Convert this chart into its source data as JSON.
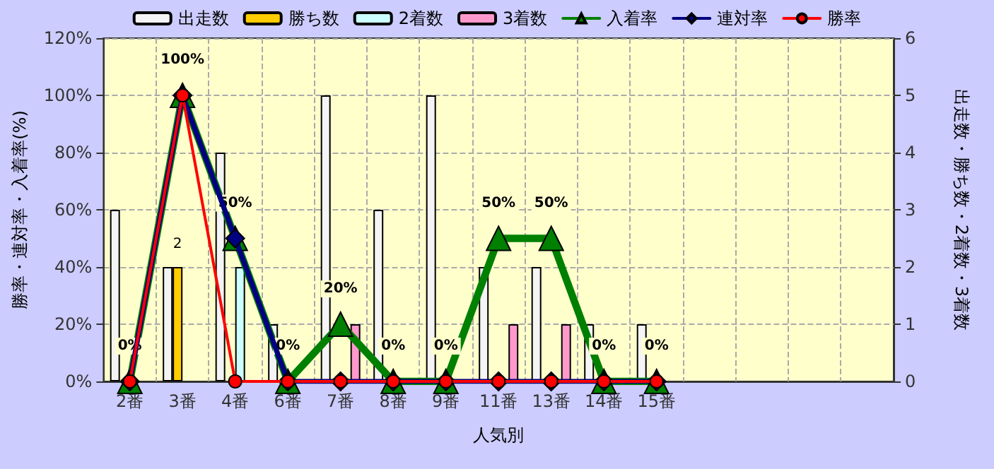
{
  "chart_data": {
    "type": "bar",
    "xlabel": "人気別",
    "ylabel": "勝率・連対率・入着率(%)",
    "y2label": "出走数・勝ち数・2着数・3着数",
    "categories": [
      "2番",
      "3番",
      "4番",
      "6番",
      "7番",
      "8番",
      "9番",
      "11番",
      "13番",
      "14番",
      "15番",
      null,
      null,
      null,
      null
    ],
    "series": [
      {
        "name": "出走数",
        "axis": "y2",
        "color": "#f4f4f4",
        "values": [
          3,
          2,
          4,
          1,
          5,
          3,
          5,
          2,
          2,
          1,
          1,
          null,
          null,
          null,
          null
        ]
      },
      {
        "name": "勝ち数",
        "axis": "y2",
        "color": "#ffcc00",
        "values": [
          0,
          2,
          0,
          0,
          0,
          0,
          0,
          0,
          0,
          0,
          0,
          null,
          null,
          null,
          null
        ],
        "value_labels": [
          null,
          "2",
          null,
          null,
          null,
          null,
          null,
          null,
          null,
          null,
          null,
          null,
          null,
          null,
          null
        ]
      },
      {
        "name": "2着数",
        "axis": "y2",
        "color": "#ccffff",
        "values": [
          0,
          0,
          2,
          0,
          0,
          0,
          0,
          0,
          0,
          0,
          0,
          null,
          null,
          null,
          null
        ]
      },
      {
        "name": "3着数",
        "axis": "y2",
        "color": "#ff99cc",
        "values": [
          0,
          0,
          0,
          0,
          1,
          0,
          0,
          1,
          1,
          0,
          0,
          null,
          null,
          null,
          null
        ]
      },
      {
        "name": "入着率",
        "type": "line",
        "marker": "triangle",
        "color": "#008000",
        "values": [
          0,
          100,
          50,
          0,
          20,
          0,
          0,
          50,
          50,
          0,
          0,
          null,
          null,
          null,
          null
        ],
        "value_labels": [
          "0%",
          "100%",
          "50%",
          "0%",
          "20%",
          "0%",
          "0%",
          "50%",
          "50%",
          "0%",
          "0%",
          null,
          null,
          null,
          null
        ]
      },
      {
        "name": "連対率",
        "type": "line",
        "marker": "diamond",
        "color": "#000080",
        "values": [
          0,
          100,
          50,
          0,
          0,
          0,
          0,
          0,
          0,
          0,
          0,
          null,
          null,
          null,
          null
        ]
      },
      {
        "name": "勝率",
        "type": "line",
        "marker": "circle",
        "color": "#ff0000",
        "values": [
          0,
          100,
          0,
          0,
          0,
          0,
          0,
          0,
          0,
          0,
          0,
          null,
          null,
          null,
          null
        ]
      }
    ],
    "ylim": [
      0,
      120
    ],
    "yticks": [
      {
        "value": 0,
        "label": "0%"
      },
      {
        "value": 20,
        "label": "20%"
      },
      {
        "value": 40,
        "label": "40%"
      },
      {
        "value": 60,
        "label": "60%"
      },
      {
        "value": 80,
        "label": "80%"
      },
      {
        "value": 100,
        "label": "100%"
      },
      {
        "value": 120,
        "label": "120%"
      }
    ],
    "y2lim": [
      0,
      6
    ],
    "y2ticks": [
      0,
      1,
      2,
      3,
      4,
      5,
      6
    ],
    "grid": true,
    "legend": "top",
    "line_style": "solid"
  }
}
